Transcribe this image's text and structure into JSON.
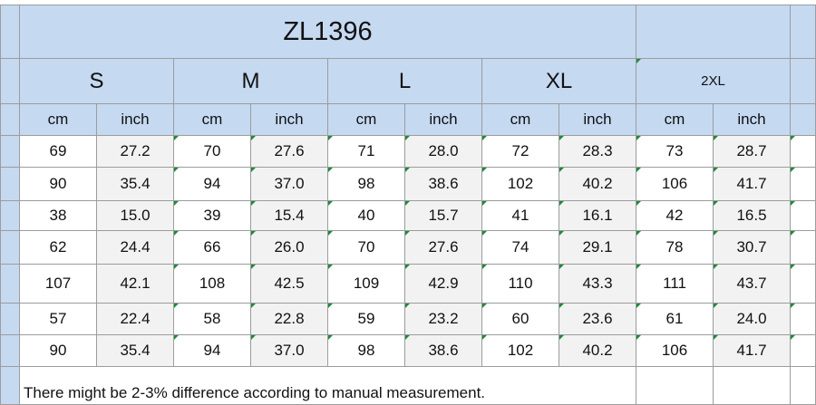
{
  "table": {
    "title": "ZL1396",
    "sizes": [
      "S",
      "M",
      "L",
      "XL",
      "2XL"
    ],
    "units": [
      "cm",
      "inch",
      "cm",
      "inch",
      "cm",
      "inch",
      "cm",
      "inch",
      "cm",
      "inch"
    ],
    "rows": [
      [
        "69",
        "27.2",
        "70",
        "27.6",
        "71",
        "28.0",
        "72",
        "28.3",
        "73",
        "28.7"
      ],
      [
        "90",
        "35.4",
        "94",
        "37.0",
        "98",
        "38.6",
        "102",
        "40.2",
        "106",
        "41.7"
      ],
      [
        "38",
        "15.0",
        "39",
        "15.4",
        "40",
        "15.7",
        "41",
        "16.1",
        "42",
        "16.5"
      ],
      [
        "62",
        "24.4",
        "66",
        "26.0",
        "70",
        "27.6",
        "74",
        "29.1",
        "78",
        "30.7"
      ],
      [
        "107",
        "42.1",
        "108",
        "42.5",
        "109",
        "42.9",
        "110",
        "43.3",
        "111",
        "43.7"
      ],
      [
        "57",
        "22.4",
        "58",
        "22.8",
        "59",
        "23.2",
        "60",
        "23.6",
        "61",
        "24.0"
      ],
      [
        "90",
        "35.4",
        "94",
        "37.0",
        "98",
        "38.6",
        "102",
        "40.2",
        "106",
        "41.7"
      ]
    ],
    "note": "There might be 2-3% difference according to manual measurement."
  }
}
